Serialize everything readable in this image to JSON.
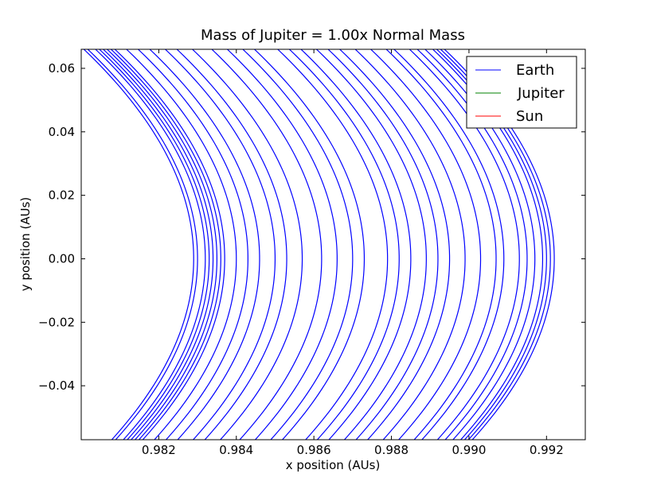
{
  "chart_data": {
    "type": "line",
    "title": "Mass of Jupiter = 1.00x Normal Mass",
    "xlabel": "x position (AUs)",
    "ylabel": "y position (AUs)",
    "xlim": [
      0.98,
      0.993
    ],
    "ylim": [
      -0.057,
      0.066
    ],
    "xticks": [
      0.982,
      0.984,
      0.986,
      0.988,
      0.99,
      0.992
    ],
    "xtick_labels": [
      "0.982",
      "0.984",
      "0.986",
      "0.988",
      "0.990",
      "0.992"
    ],
    "yticks": [
      -0.04,
      -0.02,
      0.0,
      0.02,
      0.04,
      0.06
    ],
    "ytick_labels": [
      "−0.04",
      "−0.02",
      "0.00",
      "0.02",
      "0.04",
      "0.06"
    ],
    "grid": false,
    "legend_position": "top-right",
    "series": [
      {
        "name": "Earth",
        "color": "#0000ff",
        "description": "Many overlapping orbital arcs; each arc is parabolic x = vertex_x - c*y^2, vertex at y = 0",
        "arc_vertex_x": [
          0.9829,
          0.983,
          0.9832,
          0.9833,
          0.9834,
          0.9835,
          0.9836,
          0.9837,
          0.984,
          0.9843,
          0.9846,
          0.985,
          0.9853,
          0.9857,
          0.9862,
          0.9866,
          0.987,
          0.9873,
          0.9879,
          0.9882,
          0.9885,
          0.9889,
          0.9892,
          0.9895,
          0.9899,
          0.9903,
          0.9907,
          0.9909,
          0.9913,
          0.9915,
          0.9917,
          0.9919,
          0.992,
          0.9921,
          0.9922
        ],
        "arc_curvature": 0.65
      },
      {
        "name": "Jupiter",
        "color": "#008000",
        "values": []
      },
      {
        "name": "Sun",
        "color": "#ff0000",
        "values": []
      }
    ]
  }
}
